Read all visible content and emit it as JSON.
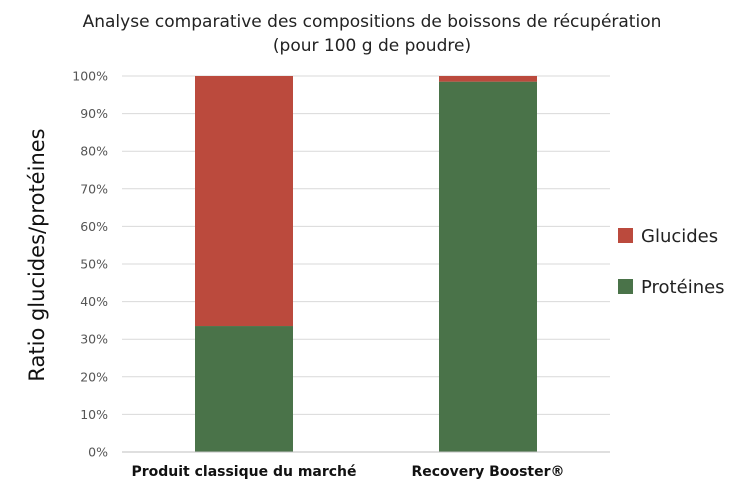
{
  "chart_data": {
    "type": "bar",
    "stacked": true,
    "percent_stacked": true,
    "title_lines": [
      "Analyse comparative des compositions de boissons de récupération",
      "(pour 100 g de poudre)"
    ],
    "xlabel": "",
    "ylabel": "Ratio glucides/protéines",
    "categories": [
      "Produit classique du marché",
      "Recovery Booster®"
    ],
    "series": [
      {
        "name": "Protéines",
        "color": "#4a7349",
        "values": [
          33.5,
          98.5
        ]
      },
      {
        "name": "Glucides",
        "color": "#bb4a3d",
        "values": [
          66.5,
          1.5
        ]
      }
    ],
    "legend_order": [
      "Glucides",
      "Protéines"
    ],
    "ylim": [
      0,
      100
    ],
    "yticks": [
      "0%",
      "10%",
      "20%",
      "30%",
      "40%",
      "50%",
      "60%",
      "70%",
      "80%",
      "90%",
      "100%"
    ],
    "grid": true,
    "legend_position": "right"
  }
}
